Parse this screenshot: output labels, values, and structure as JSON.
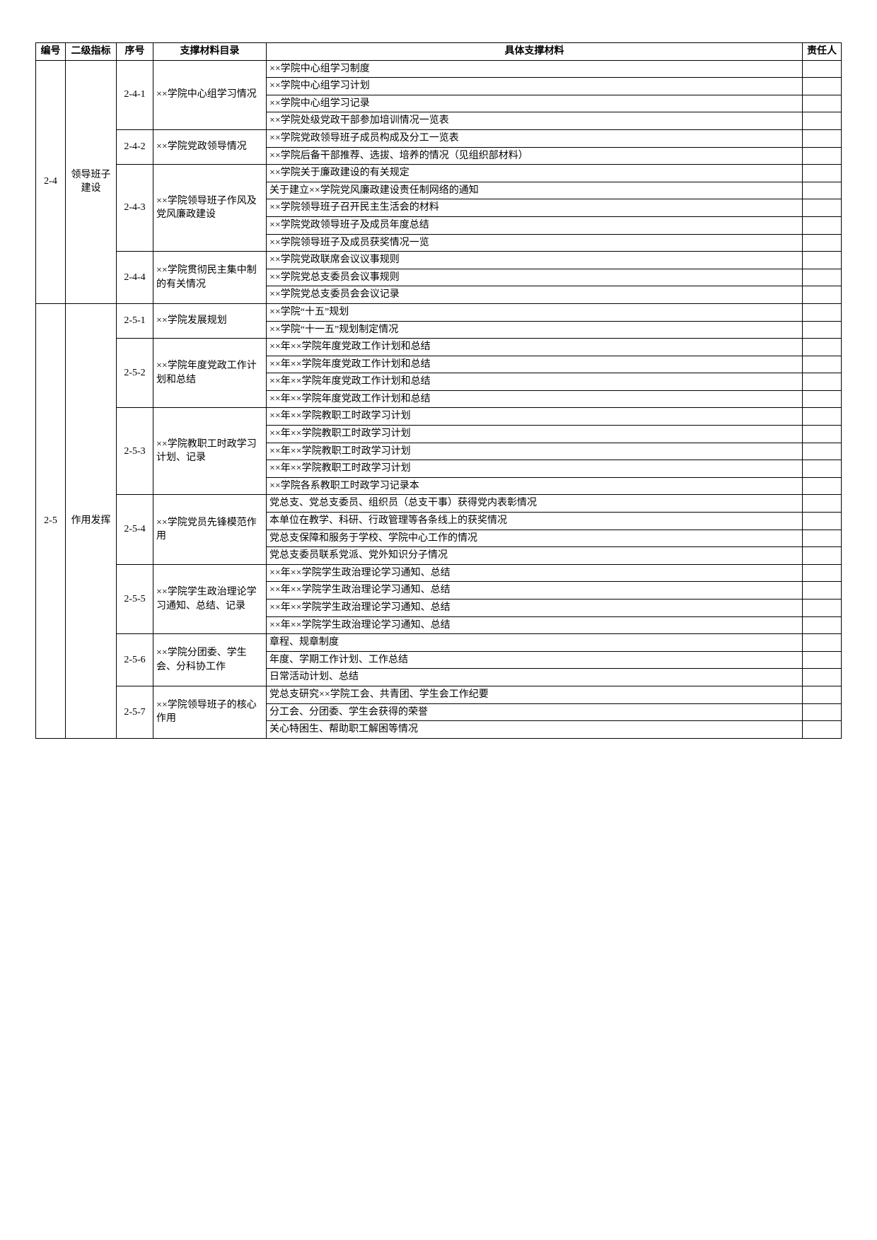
{
  "header": {
    "bianhao": "编号",
    "erji": "二级指标",
    "xuhao": "序号",
    "zhicheng": "支撑材料目录",
    "juti": "具体支撑材料",
    "zeren": "责任人"
  },
  "groups": [
    {
      "bianhao": "2-4",
      "erji": "领导班子建设",
      "seqs": [
        {
          "xuhao": "2-4-1",
          "zhicheng": "××学院中心组学习情况",
          "jutis": [
            "××学院中心组学习制度",
            "××学院中心组学习计划",
            "××学院中心组学习记录",
            "××学院处级党政干部参加培训情况一览表"
          ]
        },
        {
          "xuhao": "2-4-2",
          "zhicheng": "××学院党政领导情况",
          "jutis": [
            "××学院党政领导班子成员构成及分工一览表",
            "××学院后备干部推荐、选拔、培养的情况（见组织部材料）"
          ]
        },
        {
          "xuhao": "2-4-3",
          "zhicheng": "××学院领导班子作风及党风廉政建设",
          "jutis": [
            "××学院关于廉政建设的有关规定",
            "关于建立××学院党风廉政建设责任制网络的通知",
            "××学院领导班子召开民主生活会的材料",
            "××学院党政领导班子及成员年度总结",
            "××学院领导班子及成员获奖情况一览"
          ]
        },
        {
          "xuhao": "2-4-4",
          "zhicheng": "××学院贯彻民主集中制的有关情况",
          "jutis": [
            "××学院党政联席会议议事规则",
            "××学院党总支委员会议事规则",
            "××学院党总支委员会会议记录"
          ]
        }
      ]
    },
    {
      "bianhao": "2-5",
      "erji": "作用发挥",
      "seqs": [
        {
          "xuhao": "2-5-1",
          "zhicheng": "××学院发展规划",
          "jutis": [
            "××学院“十五”规划",
            "××学院“十一五”规划制定情况"
          ]
        },
        {
          "xuhao": "2-5-2",
          "zhicheng": "××学院年度党政工作计划和总结",
          "jutis": [
            "××年××学院年度党政工作计划和总结",
            "××年××学院年度党政工作计划和总结",
            "××年××学院年度党政工作计划和总结",
            "××年××学院年度党政工作计划和总结"
          ]
        },
        {
          "xuhao": "2-5-3",
          "zhicheng": "××学院教职工时政学习计划、记录",
          "jutis": [
            "××年××学院教职工时政学习计划",
            "××年××学院教职工时政学习计划",
            "××年××学院教职工时政学习计划",
            "××年××学院教职工时政学习计划",
            "××学院各系教职工时政学习记录本"
          ]
        },
        {
          "xuhao": "2-5-4",
          "zhicheng": "××学院党员先锋模范作用",
          "jutis": [
            "党总支、党总支委员、组织员（总支干事）获得党内表彰情况",
            "本单位在教学、科研、行政管理等各条线上的获奖情况",
            "党总支保障和服务于学校、学院中心工作的情况",
            "党总支委员联系党派、党外知识分子情况"
          ]
        },
        {
          "xuhao": "2-5-5",
          "zhicheng": "××学院学生政治理论学习通知、总结、记录",
          "jutis": [
            "××年××学院学生政治理论学习通知、总结",
            "××年××学院学生政治理论学习通知、总结",
            "××年××学院学生政治理论学习通知、总结",
            "××年××学院学生政治理论学习通知、总结"
          ]
        },
        {
          "xuhao": "2-5-6",
          "zhicheng": "××学院分团委、学生会、分科协工作",
          "jutis": [
            "章程、规章制度",
            "年度、学期工作计划、工作总结",
            "日常活动计划、总结"
          ]
        },
        {
          "xuhao": "2-5-7",
          "zhicheng": "××学院领导班子的核心作用",
          "jutis": [
            "党总支研究××学院工会、共青团、学生会工作纪要",
            "分工会、分团委、学生会获得的荣誉",
            "关心特困生、帮助职工解困等情况"
          ]
        }
      ]
    }
  ]
}
